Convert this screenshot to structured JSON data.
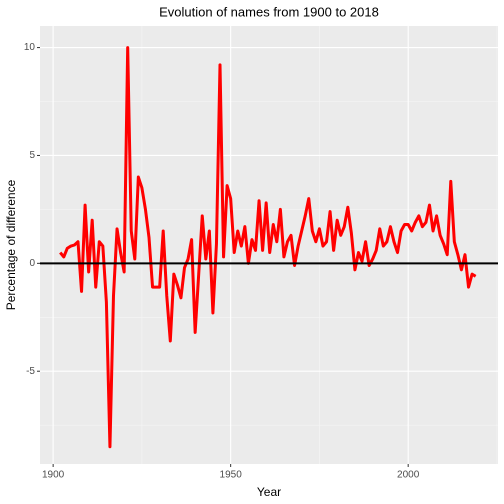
{
  "chart_data": {
    "type": "line",
    "title": "Evolution of names from 1900 to 2018",
    "x_label": "Year",
    "y_label": "Percentage of difference",
    "color": "#ff0000",
    "hline": 0,
    "grid": true,
    "xlim": [
      1896.3,
      2025.3
    ],
    "ylim": [
      -9.3,
      11.0
    ],
    "xticks": [
      1900,
      1950,
      2000
    ],
    "yticks": [
      -5,
      0,
      5,
      10
    ],
    "x_minor_ticks": [
      1925,
      1975,
      2025
    ],
    "y_minor_ticks": [
      -7.5,
      -2.5,
      2.5,
      7.5
    ],
    "x": [
      1902,
      1903,
      1904,
      1905,
      1906,
      1907,
      1908,
      1909,
      1910,
      1911,
      1912,
      1913,
      1914,
      1915,
      1916,
      1917,
      1918,
      1919,
      1920,
      1921,
      1922,
      1923,
      1924,
      1925,
      1926,
      1927,
      1928,
      1929,
      1930,
      1931,
      1932,
      1933,
      1934,
      1935,
      1936,
      1937,
      1938,
      1939,
      1940,
      1941,
      1942,
      1943,
      1944,
      1945,
      1946,
      1947,
      1948,
      1949,
      1950,
      1951,
      1952,
      1953,
      1954,
      1955,
      1956,
      1957,
      1958,
      1959,
      1960,
      1961,
      1962,
      1963,
      1964,
      1965,
      1966,
      1967,
      1968,
      1969,
      1970,
      1971,
      1972,
      1973,
      1974,
      1975,
      1976,
      1977,
      1978,
      1979,
      1980,
      1981,
      1982,
      1983,
      1984,
      1985,
      1986,
      1987,
      1988,
      1989,
      1990,
      1991,
      1992,
      1993,
      1994,
      1995,
      1996,
      1997,
      1998,
      1999,
      2000,
      2001,
      2002,
      2003,
      2004,
      2005,
      2006,
      2007,
      2008,
      2009,
      2010,
      2011,
      2012,
      2013,
      2014,
      2015,
      2016,
      2017,
      2018,
      2019
    ],
    "values": [
      0.5,
      0.3,
      0.7,
      0.8,
      0.85,
      1.0,
      -1.3,
      2.7,
      -0.4,
      2.0,
      -1.1,
      1.0,
      0.8,
      -1.8,
      -8.5,
      -1.5,
      1.6,
      0.5,
      -0.4,
      10.0,
      1.5,
      0.2,
      4.0,
      3.5,
      2.5,
      1.2,
      -1.1,
      -1.1,
      -1.1,
      1.5,
      -1.5,
      -3.6,
      -0.5,
      -1.0,
      -1.6,
      -0.2,
      0.2,
      1.1,
      -3.2,
      -0.5,
      2.2,
      0.2,
      1.5,
      -2.3,
      0.9,
      9.2,
      0.3,
      3.6,
      3.0,
      0.5,
      1.5,
      0.8,
      1.7,
      0.0,
      1.1,
      0.6,
      2.9,
      0.6,
      2.8,
      0.5,
      1.8,
      1.0,
      2.5,
      0.3,
      1.0,
      1.3,
      -0.1,
      0.8,
      1.5,
      2.2,
      3.0,
      1.5,
      1.0,
      1.6,
      0.8,
      1.0,
      2.4,
      0.6,
      2.0,
      1.3,
      1.7,
      2.6,
      1.4,
      -0.3,
      0.5,
      0.1,
      1.0,
      -0.1,
      0.2,
      0.6,
      1.6,
      0.8,
      1.0,
      1.7,
      1.0,
      0.5,
      1.5,
      1.8,
      1.8,
      1.5,
      1.9,
      2.2,
      1.7,
      1.9,
      2.7,
      1.5,
      2.2,
      1.3,
      0.9,
      0.4,
      3.8,
      1.0,
      0.4,
      -0.3,
      0.4,
      -1.1,
      -0.5,
      -0.6
    ]
  }
}
